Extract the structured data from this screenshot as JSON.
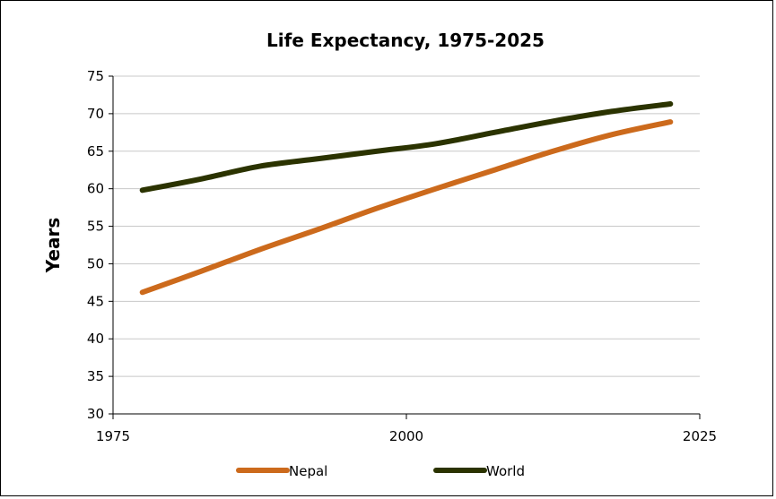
{
  "chart_data": {
    "type": "line",
    "title": "Life Expectancy, 1975-2025",
    "xlabel": "",
    "ylabel": "Years",
    "xlim": [
      1975,
      2025
    ],
    "ylim": [
      30,
      75
    ],
    "x_ticks": [
      "1975",
      "2000",
      "2025"
    ],
    "y_ticks": [
      "30",
      "35",
      "40",
      "45",
      "50",
      "55",
      "60",
      "65",
      "70",
      "75"
    ],
    "grid": "horizontal",
    "legend_position": "bottom",
    "x": [
      1977.5,
      1982.5,
      1987.5,
      1992.5,
      1997.5,
      2002.5,
      2007.5,
      2012.5,
      2017.5,
      2022.5
    ],
    "series": [
      {
        "name": "Nepal",
        "color": "#cc6a1c",
        "values": [
          46.2,
          49.0,
          51.9,
          54.6,
          57.4,
          60.0,
          62.5,
          65.0,
          67.2,
          68.9
        ]
      },
      {
        "name": "World",
        "color": "#2b3300",
        "values": [
          59.8,
          61.3,
          63.0,
          64.0,
          65.0,
          66.0,
          67.5,
          69.0,
          70.3,
          71.3
        ]
      }
    ]
  }
}
